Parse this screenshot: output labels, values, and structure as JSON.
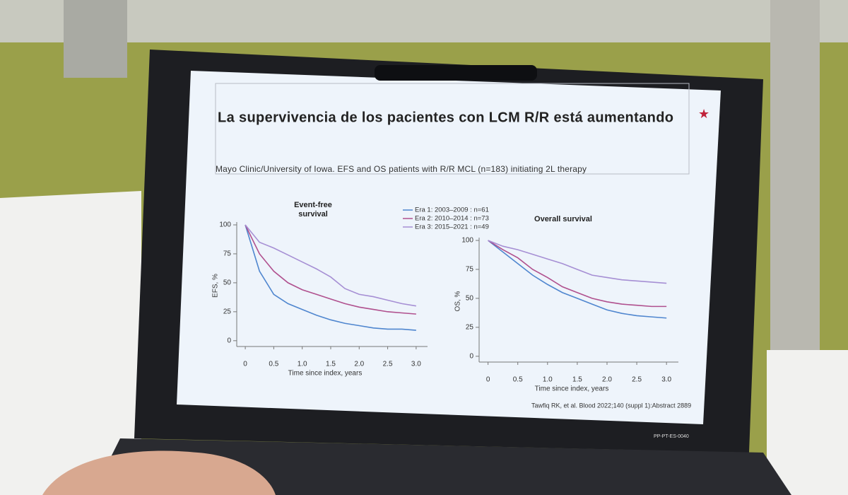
{
  "slide": {
    "title": "La supervivencia de los pacientes con LCM R/R está aumentando",
    "subtitle": "Mayo Clinic/University of Iowa. EFS and OS patients with R/R MCL (n=183) initiating 2L therapy",
    "citation": "Tawfiq RK, et al. Blood 2022;140 (suppl 1):Abstract 2889",
    "code": "PP-PT-ES-0040"
  },
  "chart_data": [
    {
      "type": "line",
      "title": "Event-free survival",
      "xlabel": "Time since index, years",
      "ylabel": "EFS, %",
      "x": [
        0,
        0.25,
        0.5,
        0.75,
        1,
        1.25,
        1.5,
        1.75,
        2,
        2.25,
        2.5,
        2.75,
        3
      ],
      "series": [
        {
          "name": "Era 1: 2003–2009 : n=61",
          "color": "#4f86cf",
          "values": [
            100,
            60,
            40,
            32,
            27,
            22,
            18,
            15,
            13,
            11,
            10,
            10,
            9
          ]
        },
        {
          "name": "Era 2: 2010–2014 : n=73",
          "color": "#b0508e",
          "values": [
            100,
            75,
            60,
            50,
            44,
            40,
            36,
            32,
            29,
            27,
            25,
            24,
            23
          ]
        },
        {
          "name": "Era 3: 2015–2021 : n=49",
          "color": "#a68fd4",
          "values": [
            100,
            85,
            80,
            74,
            68,
            62,
            55,
            45,
            40,
            38,
            35,
            32,
            30
          ]
        }
      ],
      "xlim": [
        -0.15,
        3.2
      ],
      "xticks": [
        0,
        0.5,
        {
          "value": 1,
          "label": "1.0"
        },
        1.5,
        {
          "value": 2,
          "label": "2.0"
        },
        2.5,
        {
          "value": 3,
          "label": "3.0"
        }
      ],
      "ylim": [
        -5,
        100
      ],
      "yticks": [
        0,
        25,
        50,
        75,
        100
      ]
    },
    {
      "type": "line",
      "title": "Overall survival",
      "xlabel": "Time since index, years",
      "ylabel": "OS, %",
      "x": [
        0,
        0.25,
        0.5,
        0.75,
        1,
        1.25,
        1.5,
        1.75,
        2,
        2.25,
        2.5,
        2.75,
        3
      ],
      "series": [
        {
          "color": "#4f86cf",
          "values": [
            100,
            90,
            80,
            70,
            62,
            55,
            50,
            45,
            40,
            37,
            35,
            34,
            33
          ]
        },
        {
          "color": "#b0508e",
          "values": [
            100,
            92,
            85,
            75,
            68,
            60,
            55,
            50,
            47,
            45,
            44,
            43,
            43
          ]
        },
        {
          "color": "#a68fd4",
          "values": [
            100,
            95,
            92,
            88,
            84,
            80,
            75,
            70,
            68,
            66,
            65,
            64,
            63
          ]
        }
      ],
      "xlim": [
        -0.15,
        3.2
      ],
      "xticks": [
        0,
        0.5,
        {
          "value": 1,
          "label": "1.0"
        },
        1.5,
        {
          "value": 2,
          "label": "2.0"
        },
        2.5,
        {
          "value": 3,
          "label": "3.0"
        }
      ],
      "ylim": [
        -5,
        100
      ],
      "yticks": [
        0,
        25,
        50,
        75,
        100
      ]
    }
  ]
}
